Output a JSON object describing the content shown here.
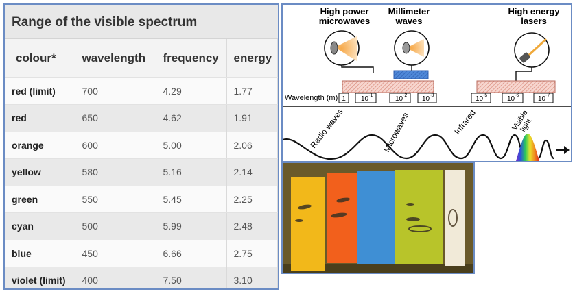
{
  "table": {
    "title": "Range of the visible spectrum",
    "headers": [
      "colour*",
      "wavelength",
      "frequency",
      "energy"
    ],
    "rows": [
      [
        "red (limit)",
        "700",
        "4.29",
        "1.77"
      ],
      [
        "red",
        "650",
        "4.62",
        "1.91"
      ],
      [
        "orange",
        "600",
        "5.00",
        "2.06"
      ],
      [
        "yellow",
        "580",
        "5.16",
        "2.14"
      ],
      [
        "green",
        "550",
        "5.45",
        "2.25"
      ],
      [
        "cyan",
        "500",
        "5.99",
        "2.48"
      ],
      [
        "blue",
        "450",
        "6.66",
        "2.75"
      ],
      [
        "violet (limit)",
        "400",
        "7.50",
        "3.10"
      ]
    ]
  },
  "diagram": {
    "source_labels": {
      "microwaves": [
        "High power",
        "microwaves"
      ],
      "millimeter": [
        "Millimeter",
        "waves"
      ],
      "lasers": [
        "High energy",
        "lasers"
      ]
    },
    "wavelength_axis_label": "Wavelength (m)",
    "wavelength_ticks": [
      "1",
      "10",
      "10",
      "10",
      "10",
      "10",
      "10"
    ],
    "wavelength_exponents": [
      "",
      "-1",
      "-2",
      "-3",
      "-5",
      "-6",
      "-7"
    ],
    "band_labels": [
      "Radio waves",
      "Microwaves",
      "Infrared"
    ],
    "visible_label": [
      "Visible",
      "light"
    ]
  },
  "photo": {
    "strip_colors": [
      "#f2b81a",
      "#f2601c",
      "#3f8fd4",
      "#b8c42a",
      "#f1ead8"
    ]
  }
}
